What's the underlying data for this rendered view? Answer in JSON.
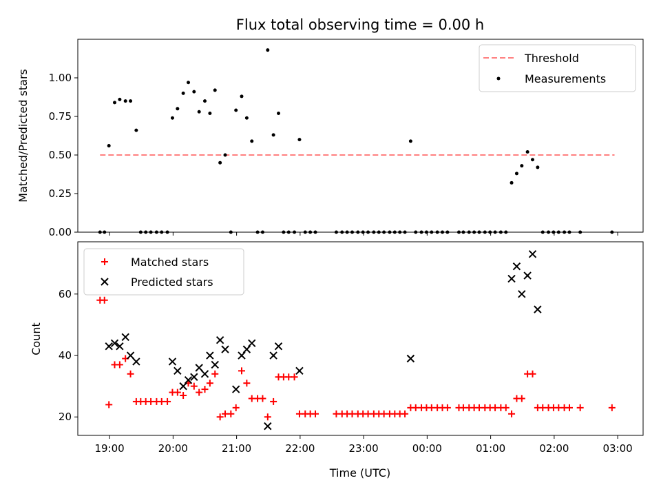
{
  "chart_data": [
    {
      "type": "scatter",
      "title": "Flux total observing time = 0.00 h",
      "ylabel": "Matched/Predicted stars",
      "ylim": [
        0,
        1.25
      ],
      "yticks": [
        "0.00",
        "0.25",
        "0.50",
        "0.75",
        "1.00"
      ],
      "grid": false,
      "legend_position": "top-right",
      "threshold": {
        "name": "Threshold",
        "value": 0.5,
        "x_start": 18.85,
        "x_end": 26.95,
        "color": "#ff7f7f"
      },
      "series": [
        {
          "name": "Measurements",
          "color": "#000000",
          "x": [
            18.85,
            18.92,
            18.99,
            19.08,
            19.16,
            19.25,
            19.33,
            19.42,
            19.49,
            19.57,
            19.65,
            19.74,
            19.82,
            19.91,
            19.99,
            20.07,
            20.16,
            20.24,
            20.33,
            20.41,
            20.5,
            20.58,
            20.66,
            20.74,
            20.82,
            20.91,
            20.99,
            21.08,
            21.16,
            21.24,
            21.33,
            21.41,
            21.49,
            21.58,
            21.66,
            21.74,
            21.82,
            21.91,
            21.99,
            22.08,
            22.16,
            22.24,
            22.57,
            22.66,
            22.74,
            22.82,
            22.91,
            22.99,
            23.07,
            23.16,
            23.24,
            23.32,
            23.41,
            23.49,
            23.57,
            23.65,
            23.74,
            23.82,
            23.91,
            23.99,
            24.07,
            24.16,
            24.24,
            24.32,
            24.5,
            24.57,
            24.66,
            24.74,
            24.82,
            24.91,
            24.99,
            25.07,
            25.16,
            25.24,
            25.33,
            25.41,
            25.49,
            25.58,
            25.66,
            25.74,
            25.82,
            25.91,
            25.99,
            26.07,
            26.16,
            26.24,
            26.41,
            26.91
          ],
          "values": [
            0,
            0,
            0.56,
            0.84,
            0.86,
            0.85,
            0.85,
            0.66,
            0,
            0,
            0,
            0,
            0,
            0,
            0.74,
            0.8,
            0.9,
            0.97,
            0.91,
            0.78,
            0.85,
            0.77,
            0.92,
            0.45,
            0.5,
            0,
            0.79,
            0.88,
            0.74,
            0.59,
            0,
            0,
            1.18,
            0.63,
            0.77,
            0,
            0,
            0,
            0.6,
            0,
            0,
            0,
            0,
            0,
            0,
            0,
            0,
            0,
            0,
            0,
            0,
            0,
            0,
            0,
            0,
            0,
            0.59,
            0,
            0,
            0,
            0,
            0,
            0,
            0,
            0,
            0,
            0,
            0,
            0,
            0,
            0,
            0,
            0,
            0,
            0.32,
            0.38,
            0.43,
            0.52,
            0.47,
            0.42,
            0,
            0,
            0,
            0,
            0,
            0,
            0,
            0
          ]
        }
      ]
    },
    {
      "type": "scatter",
      "xlabel": "Time (UTC)",
      "ylabel": "Count",
      "xlim": [
        18.5,
        27.4
      ],
      "ylim": [
        14,
        77
      ],
      "yticks": [
        "20",
        "40",
        "60"
      ],
      "xticks": [
        "19:00",
        "20:00",
        "21:00",
        "22:00",
        "23:00",
        "00:00",
        "01:00",
        "02:00",
        "03:00"
      ],
      "grid": false,
      "legend_position": "top-left",
      "series": [
        {
          "name": "Matched stars",
          "color": "#ff0000",
          "marker": "plus",
          "x": [
            18.85,
            18.92,
            18.99,
            19.08,
            19.16,
            19.25,
            19.33,
            19.42,
            19.49,
            19.57,
            19.65,
            19.74,
            19.82,
            19.91,
            19.99,
            20.07,
            20.16,
            20.24,
            20.33,
            20.41,
            20.5,
            20.58,
            20.66,
            20.74,
            20.82,
            20.91,
            20.99,
            21.08,
            21.16,
            21.24,
            21.33,
            21.41,
            21.49,
            21.58,
            21.66,
            21.74,
            21.82,
            21.91,
            21.99,
            22.08,
            22.16,
            22.24,
            22.57,
            22.66,
            22.74,
            22.82,
            22.91,
            22.99,
            23.07,
            23.16,
            23.24,
            23.32,
            23.41,
            23.49,
            23.57,
            23.65,
            23.74,
            23.82,
            23.91,
            23.99,
            24.07,
            24.16,
            24.24,
            24.32,
            24.5,
            24.57,
            24.66,
            24.74,
            24.82,
            24.91,
            24.99,
            25.07,
            25.16,
            25.24,
            25.33,
            25.41,
            25.49,
            25.58,
            25.66,
            25.74,
            25.82,
            25.91,
            25.99,
            26.07,
            26.16,
            26.24,
            26.41,
            26.91
          ],
          "values": [
            58,
            58,
            24,
            37,
            37,
            39,
            34,
            25,
            25,
            25,
            25,
            25,
            25,
            25,
            28,
            28,
            27,
            31,
            30,
            28,
            29,
            31,
            34,
            20,
            21,
            21,
            23,
            35,
            31,
            26,
            26,
            26,
            20,
            25,
            33,
            33,
            33,
            33,
            21,
            21,
            21,
            21,
            21,
            21,
            21,
            21,
            21,
            21,
            21,
            21,
            21,
            21,
            21,
            21,
            21,
            21,
            23,
            23,
            23,
            23,
            23,
            23,
            23,
            23,
            23,
            23,
            23,
            23,
            23,
            23,
            23,
            23,
            23,
            23,
            21,
            26,
            26,
            34,
            34,
            23,
            23,
            23,
            23,
            23,
            23,
            23,
            23,
            23
          ]
        },
        {
          "name": "Predicted stars",
          "color": "#000000",
          "marker": "x",
          "x": [
            18.99,
            19.08,
            19.16,
            19.25,
            19.33,
            19.42,
            19.99,
            20.07,
            20.16,
            20.24,
            20.33,
            20.41,
            20.5,
            20.58,
            20.66,
            20.74,
            20.82,
            20.99,
            21.08,
            21.16,
            21.24,
            21.49,
            21.58,
            21.66,
            21.99,
            23.74,
            25.33,
            25.41,
            25.49,
            25.58,
            25.66,
            25.74
          ],
          "values": [
            43,
            44,
            43,
            46,
            40,
            38,
            38,
            35,
            30,
            32,
            33,
            36,
            34,
            40,
            37,
            45,
            42,
            29,
            40,
            42,
            44,
            17,
            40,
            43,
            35,
            39,
            65,
            69,
            60,
            66,
            73,
            55
          ]
        }
      ]
    }
  ]
}
